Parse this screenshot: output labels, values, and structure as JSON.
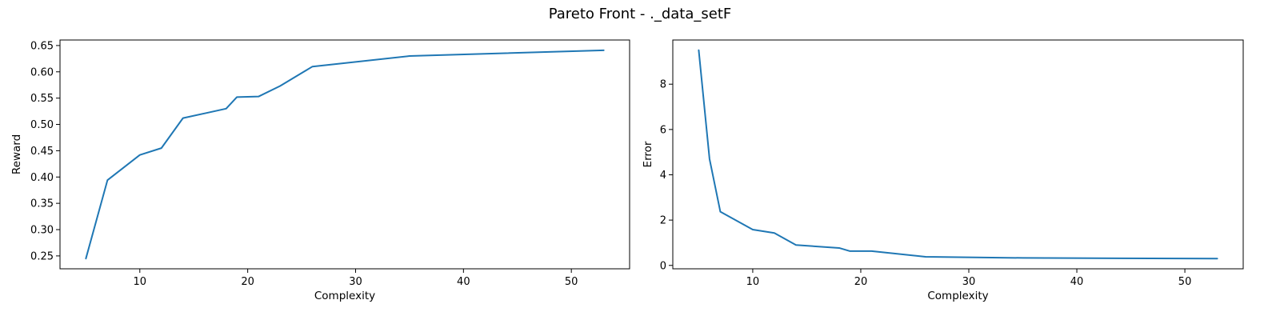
{
  "figure": {
    "title": "Pareto Front - ._data_setF"
  },
  "chart_data": [
    {
      "type": "line",
      "title": "",
      "xlabel": "Complexity",
      "ylabel": "Reward",
      "xlim": [
        2.6,
        55.4
      ],
      "ylim": [
        0.2255,
        0.6605
      ],
      "xticks": [
        10,
        20,
        30,
        40,
        50
      ],
      "yticks": [
        0.25,
        0.3,
        0.35,
        0.4,
        0.45,
        0.5,
        0.55,
        0.6,
        0.65
      ],
      "ytick_decimals": 2,
      "grid": false,
      "color": "#1f77b4",
      "series": [
        {
          "x": [
            5,
            7,
            10,
            12,
            14,
            18,
            19,
            21,
            23,
            26,
            35,
            53
          ],
          "y": [
            0.245,
            0.394,
            0.442,
            0.455,
            0.512,
            0.53,
            0.552,
            0.553,
            0.573,
            0.61,
            0.63,
            0.641
          ]
        }
      ]
    },
    {
      "type": "line",
      "title": "",
      "xlabel": "Complexity",
      "ylabel": "Error",
      "xlim": [
        2.6,
        55.4
      ],
      "ylim": [
        -0.15,
        9.95
      ],
      "xticks": [
        10,
        20,
        30,
        40,
        50
      ],
      "yticks": [
        0,
        2,
        4,
        6,
        8
      ],
      "ytick_decimals": 0,
      "grid": false,
      "color": "#1f77b4",
      "series": [
        {
          "x": [
            5,
            6,
            7,
            10,
            12,
            14,
            18,
            19,
            21,
            26,
            35,
            53
          ],
          "y": [
            9.5,
            4.7,
            2.37,
            1.58,
            1.43,
            0.9,
            0.77,
            0.63,
            0.63,
            0.38,
            0.33,
            0.3
          ]
        }
      ]
    }
  ]
}
